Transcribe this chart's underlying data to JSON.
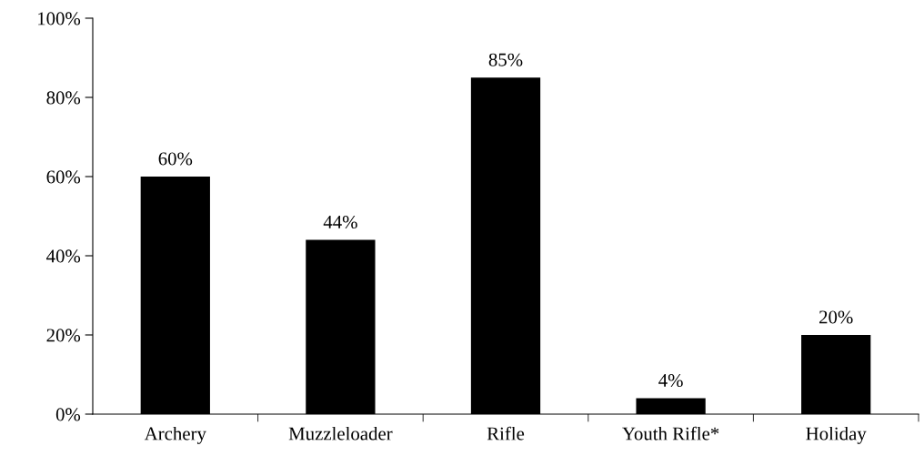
{
  "chart_data": {
    "type": "bar",
    "categories": [
      "Archery",
      "Muzzleloader",
      "Rifle",
      "Youth Rifle*",
      "Holiday"
    ],
    "values": [
      60,
      44,
      85,
      4,
      20
    ],
    "color": "#000000",
    "ylim": [
      0,
      100
    ],
    "yticks": [
      {
        "value": 0,
        "label": "0%"
      },
      {
        "value": 20,
        "label": "20%"
      },
      {
        "value": 40,
        "label": "40%"
      },
      {
        "value": 60,
        "label": "60%"
      },
      {
        "value": 80,
        "label": "80%"
      },
      {
        "value": 100,
        "label": "100%"
      }
    ],
    "value_labels": [
      "60%",
      "44%",
      "85%",
      "4%",
      "20%"
    ],
    "grid": false,
    "legend": false
  }
}
